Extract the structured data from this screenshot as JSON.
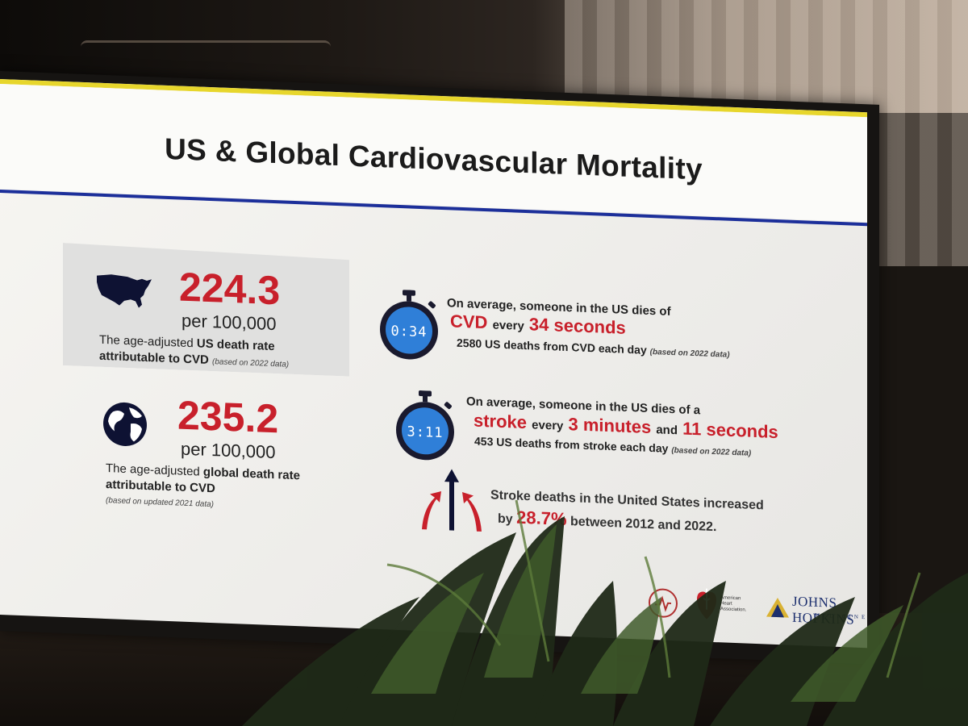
{
  "slide": {
    "title": "US & Global Cardiovascular Mortality"
  },
  "us_stat": {
    "value": "224.3",
    "unit": "per 100,000",
    "desc_prefix": "The age-adjusted",
    "desc_bold_1": "US death rate",
    "desc_bold_2": "attributable to CVD",
    "note": "(based on 2022 data)"
  },
  "global_stat": {
    "value": "235.2",
    "unit": "per 100,000",
    "desc_prefix": "The age-adjusted",
    "desc_bold_1": "global death rate",
    "desc_bold_2": "attributable to CVD",
    "note": "(based on updated 2021 data)"
  },
  "fact_cvd": {
    "timer": "0:34",
    "line1": "On average, someone in the US dies of",
    "term": "CVD",
    "every": "every",
    "interval": "34 seconds",
    "line3": "2580 US deaths from CVD each day",
    "note": "(based on 2022 data)"
  },
  "fact_stroke": {
    "timer": "3:11",
    "line1": "On average, someone in the US dies of a",
    "term": "stroke",
    "every": "every",
    "interval_1": "3 minutes",
    "and": "and",
    "interval_2": "11 seconds",
    "line3": "453 US deaths from stroke each day",
    "note": "(based on 2022 data)"
  },
  "fact_increase": {
    "line1": "Stroke deaths in the United States increased",
    "by": "by",
    "percent": "28.7%",
    "rest": "between 2012 and 2022."
  },
  "logos": {
    "aha_text": "American Heart Association.",
    "jhm_name": "JOHNS HOPKINS",
    "jhm_sub": "MEDICINE"
  },
  "colors": {
    "accent_red": "#c8202b",
    "title_rule_blue": "#1c2f9a",
    "stopwatch_blue": "#2f7fd8",
    "top_band_yellow": "#e7d62c"
  },
  "icons": [
    "us-map-icon",
    "globe-icon",
    "stopwatch-icon",
    "up-arrows-icon",
    "cvd-logo",
    "aha-heart-logo",
    "jhm-shield-logo"
  ]
}
